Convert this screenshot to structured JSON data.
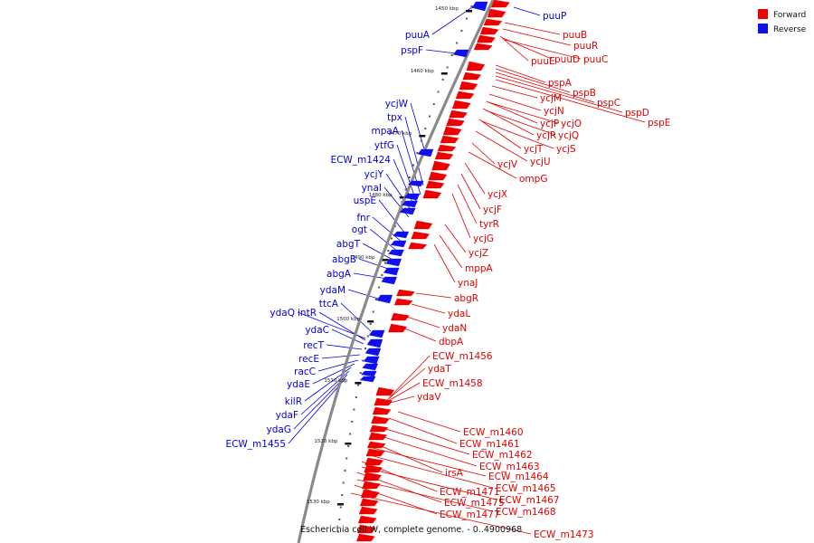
{
  "caption": "Escherichia coli W, complete genome. - 0..4900968",
  "legend": [
    {
      "label": "Forward",
      "color": "#ee0000"
    },
    {
      "label": "Reverse",
      "color": "#1010ee"
    }
  ],
  "ticks": [
    "1450 kbp",
    "1460 kbp",
    "1470 kbp",
    "1480 kbp",
    "1490 kbp",
    "1500 kbp",
    "1510 kbp",
    "1520 kbp",
    "1530 kbp"
  ],
  "forward_labels": [
    "puuB",
    "puuR",
    "puuE",
    "puuD",
    "puuC",
    "pspA",
    "pspB",
    "pspC",
    "pspD",
    "pspE",
    "ycjM",
    "ycjN",
    "ycjP",
    "ycjO",
    "ycjR",
    "ycjQ",
    "ycjT",
    "ycjS",
    "ycjU",
    "ycjV",
    "ompG",
    "ycjX",
    "ycjF",
    "tyrR",
    "ycjG",
    "ycjZ",
    "mppA",
    "ynaJ",
    "abgR",
    "ydaL",
    "ydaN",
    "dbpA",
    "ECW_m1456",
    "ydaT",
    "ECW_m1458",
    "ydaV",
    "ECW_m1460",
    "ECW_m1461",
    "ECW_m1462",
    "ECW_m1463",
    "irsA",
    "ECW_m1464",
    "ECW_m1465",
    "ECW_m1471",
    "ECW_m1467",
    "ECW_m1475",
    "ECW_m1468",
    "ECW_m1477",
    "ECW_m1473"
  ],
  "reverse_labels": [
    "puuP",
    "puuA",
    "pspF",
    "ycjW",
    "tpx",
    "mpaA",
    "ytfG",
    "ECW_m1424",
    "ycjY",
    "ynaI",
    "uspE",
    "fnr",
    "ogt",
    "abgT",
    "abgB",
    "abgA",
    "ydaM",
    "ttcA",
    "ydaQ",
    "intR",
    "ydaC",
    "recT",
    "recE",
    "racC",
    "ydaE",
    "kilR",
    "ydaF",
    "ydaG",
    "ECW_m1455"
  ]
}
